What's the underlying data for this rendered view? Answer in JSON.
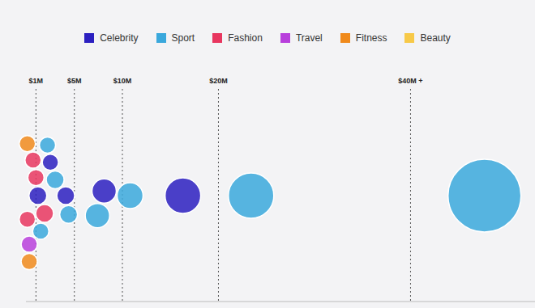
{
  "chart_data": {
    "type": "bubble",
    "xlim": [
      0,
      53
    ],
    "xticks": [
      {
        "value": 1,
        "label": "$1M"
      },
      {
        "value": 5,
        "label": "$5M"
      },
      {
        "value": 10,
        "label": "$10M"
      },
      {
        "value": 20,
        "label": "$20M"
      },
      {
        "value": 40,
        "label": "$40M +"
      }
    ],
    "grid": true,
    "legend": "top",
    "tick_labels": "x",
    "series": [
      {
        "name": "Celebrity",
        "color": "#2b1fc0",
        "values": [
          1.2,
          2.5,
          4.1,
          8.1,
          16.3
        ],
        "sizes": [
          11,
          10,
          11,
          15,
          22
        ]
      },
      {
        "name": "Sport",
        "color": "#3aa8dc",
        "values": [
          3.0,
          1.5,
          4.4,
          2.2,
          7.4,
          10.8,
          23.4,
          47.7
        ],
        "sizes": [
          11,
          10,
          11,
          10,
          15,
          16,
          28,
          45
        ]
      },
      {
        "name": "Fashion",
        "color": "#e8365f",
        "values": [
          1.9,
          1.0,
          0.1,
          0.7
        ],
        "sizes": [
          11,
          10,
          10,
          10
        ]
      },
      {
        "name": "Travel",
        "color": "#b83fdc",
        "values": [
          0.3
        ],
        "sizes": [
          10
        ]
      },
      {
        "name": "Fitness",
        "color": "#f08a1c",
        "values": [
          0.1,
          0.3
        ],
        "sizes": [
          10,
          10
        ]
      },
      {
        "name": "Beauty",
        "color": "#f7c948",
        "values": [],
        "sizes": []
      }
    ]
  }
}
